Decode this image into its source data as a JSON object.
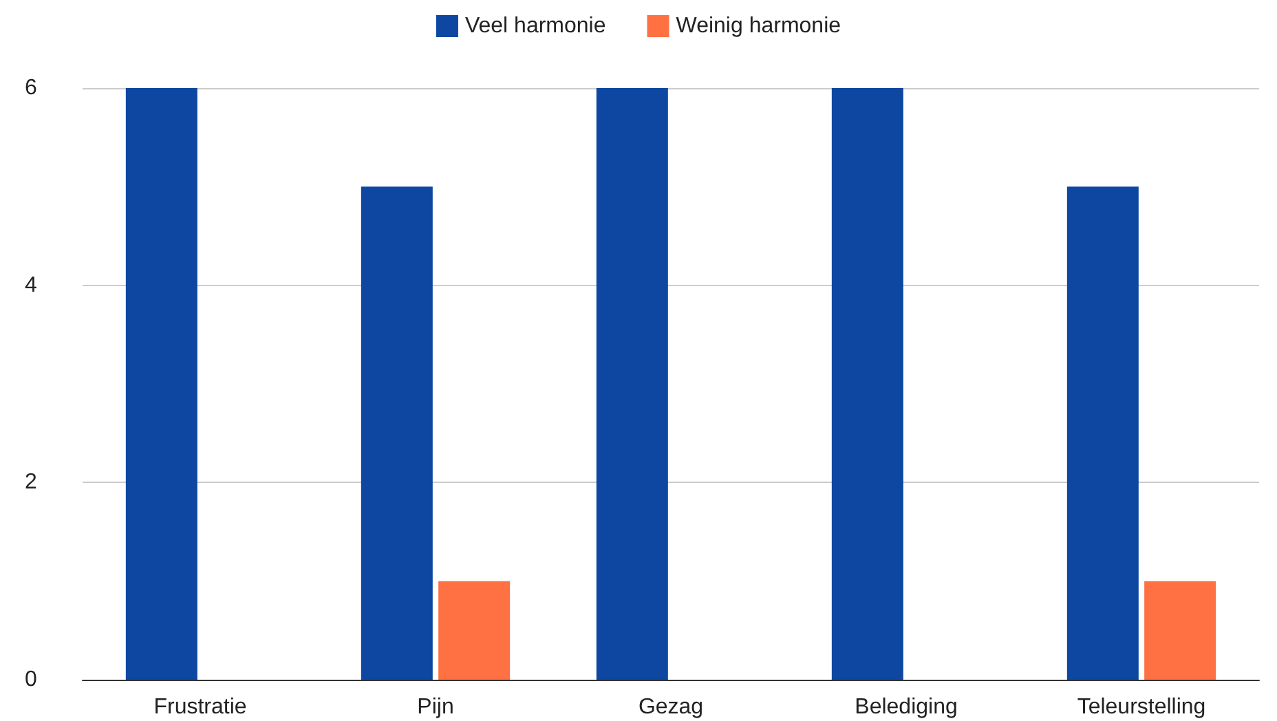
{
  "chart_data": {
    "type": "bar",
    "categories": [
      "Frustratie",
      "Pijn",
      "Gezag",
      "Belediging",
      "Teleurstelling"
    ],
    "series": [
      {
        "name": "Veel harmonie",
        "color": "#0d47a1",
        "values": [
          6,
          5,
          6,
          6,
          5
        ]
      },
      {
        "name": "Weinig harmonie",
        "color": "#ff7043",
        "values": [
          0,
          1,
          0,
          0,
          1
        ]
      }
    ],
    "ylim": [
      0,
      6
    ],
    "yticks": [
      0,
      2,
      4,
      6
    ],
    "grid": "y",
    "legend": "top"
  }
}
